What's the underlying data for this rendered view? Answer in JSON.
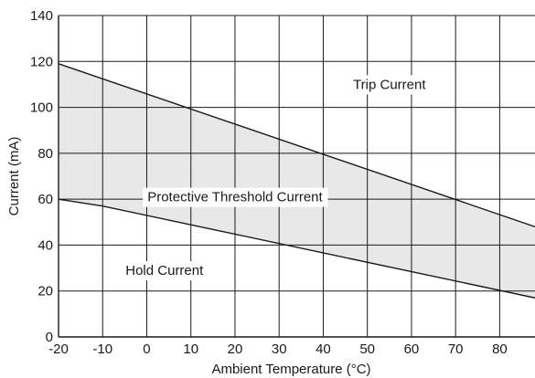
{
  "chart_data": {
    "type": "line",
    "title": "",
    "xlabel": "Ambient Temperature (°C)",
    "ylabel": "Current (mA)",
    "xlim": [
      -20,
      88
    ],
    "ylim": [
      0,
      140
    ],
    "x_ticks": [
      -20,
      -10,
      0,
      10,
      20,
      30,
      40,
      50,
      60,
      70,
      80
    ],
    "y_ticks": [
      0,
      20,
      40,
      60,
      80,
      100,
      120,
      140
    ],
    "grid": true,
    "series": [
      {
        "name": "Trip Current",
        "x": [
          -20,
          88
        ],
        "y": [
          119,
          48
        ]
      },
      {
        "name": "Hold Current",
        "x": [
          -20,
          -10,
          88
        ],
        "y": [
          60,
          57,
          17
        ]
      }
    ],
    "fill_between": {
      "upper": "Trip Current",
      "lower": "Hold Current",
      "color": "#e8e8e8"
    },
    "annotations": [
      {
        "text": "Trip Current",
        "x": 55,
        "y": 110
      },
      {
        "text": "Protective Threshold Current",
        "x": 20,
        "y": 61
      },
      {
        "text": "Hold Current",
        "x": 4,
        "y": 29
      }
    ],
    "line_color": "#1a1a1a",
    "grid_color": "#1a1a1a"
  }
}
